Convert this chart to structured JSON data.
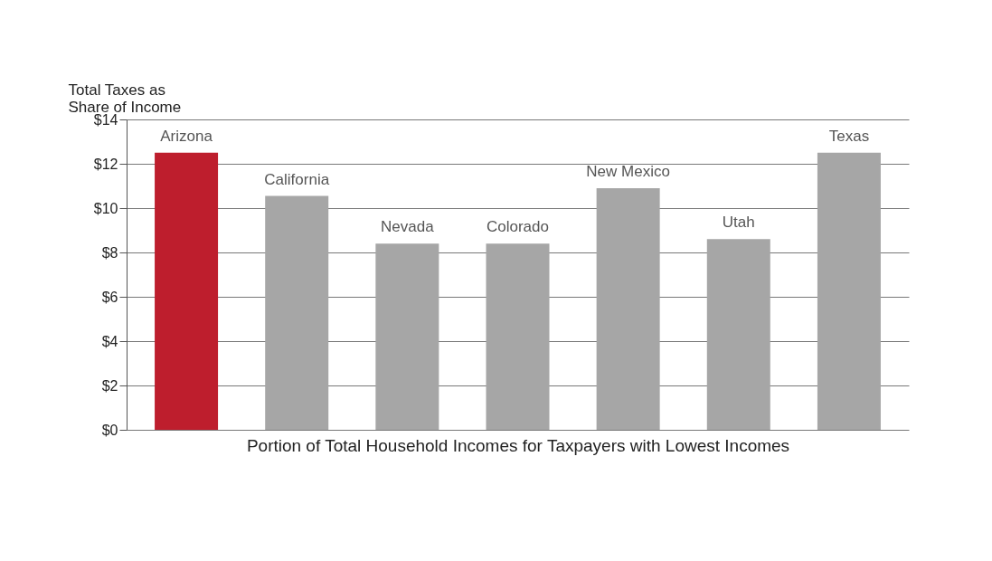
{
  "chart_data": {
    "type": "bar",
    "ylabel": "Total Taxes as Share of Income",
    "xlabel": "Portion of Total Household Incomes for Taxpayers with Lowest Incomes",
    "categories": [
      "Arizona",
      "California",
      "Nevada",
      "Colorado",
      "New Mexico",
      "Utah",
      "Texas"
    ],
    "values": [
      12.5,
      10.55,
      8.4,
      8.4,
      10.9,
      8.6,
      12.5
    ],
    "colors": [
      "#be1e2d",
      "#a6a6a6",
      "#a6a6a6",
      "#a6a6a6",
      "#a6a6a6",
      "#a6a6a6",
      "#a6a6a6"
    ],
    "ylim": [
      0,
      14
    ],
    "yticks": [
      {
        "value": 0,
        "label": "$0"
      },
      {
        "value": 2,
        "label": "$2"
      },
      {
        "value": 4,
        "label": "$4"
      },
      {
        "value": 6,
        "label": "$6"
      },
      {
        "value": 8,
        "label": "$8"
      },
      {
        "value": 10,
        "label": "$10"
      },
      {
        "value": 12,
        "label": "$12"
      },
      {
        "value": 14,
        "label": "$14"
      }
    ],
    "grid": "y"
  }
}
